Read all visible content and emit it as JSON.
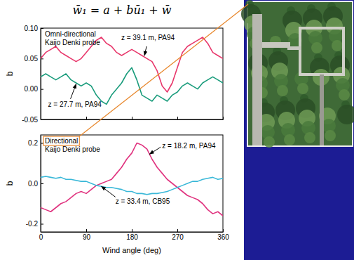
{
  "title": "w̄₁ = a + bū₁ + w̄",
  "chart_data": [
    {
      "type": "line",
      "note": [
        "Omni-directional",
        "Kaijo Denki probe"
      ],
      "y_label": "b",
      "tick_labels": "y",
      "xlim": [
        0,
        360
      ],
      "xticks": [
        0,
        90,
        180,
        270,
        360
      ],
      "ylim": [
        -0.05,
        0.1
      ],
      "yticks": [
        -0.05,
        {
          "value": 0,
          "label": "0.00"
        },
        0.05,
        {
          "value": 0.1,
          "label": "0.10"
        }
      ],
      "x": [
        0,
        10,
        20,
        30,
        40,
        50,
        60,
        70,
        80,
        90,
        100,
        110,
        120,
        130,
        140,
        150,
        160,
        170,
        180,
        190,
        200,
        210,
        220,
        230,
        240,
        250,
        260,
        270,
        280,
        290,
        300,
        310,
        320,
        330,
        340,
        350,
        360
      ],
      "series": [
        {
          "name": "z = 39.1 m, PA94",
          "color": "#e8376b",
          "values": [
            0.05,
            0.06,
            0.065,
            0.07,
            0.06,
            0.055,
            0.05,
            0.045,
            0.05,
            0.06,
            0.07,
            0.08,
            0.085,
            0.075,
            0.07,
            0.06,
            0.055,
            0.06,
            0.065,
            0.06,
            0.055,
            0.05,
            0.045,
            0.03,
            0.005,
            -0.005,
            0.01,
            0.035,
            0.06,
            0.07,
            0.075,
            0.08,
            0.085,
            0.075,
            0.06,
            0.055,
            0.05
          ]
        },
        {
          "name": "z = 27.7 m, PA94",
          "color": "#1a9c7c",
          "values": [
            0.02,
            0.025,
            0.02,
            0.015,
            0.02,
            0.025,
            0.015,
            0.01,
            0.005,
            0.01,
            0.005,
            -0.01,
            -0.02,
            -0.025,
            -0.01,
            0,
            0.01,
            0.025,
            0.035,
            0.015,
            -0.01,
            -0.015,
            -0.02,
            -0.01,
            -0.015,
            -0.02,
            -0.01,
            -0.005,
            0.005,
            0.01,
            0.005,
            0,
            0.01,
            0.015,
            0.02,
            0.015,
            0.01
          ]
        }
      ],
      "annotations": [
        {
          "text": "z = 39.1 m, PA94",
          "x": 205,
          "y": 0.055
        },
        {
          "text": "z = 27.7 m, PA94",
          "x": 70,
          "y": 0.008
        }
      ]
    },
    {
      "type": "line",
      "note": [
        "Directional",
        "Kaijo Denki probe"
      ],
      "y_label": "b",
      "x_label": "Wind angle (deg)",
      "xlim": [
        0,
        360
      ],
      "xticks": [
        0,
        90,
        180,
        270,
        360
      ],
      "ylim": [
        -0.24,
        0.24
      ],
      "yticks": [
        -0.2,
        {
          "value": 0,
          "label": "0.0"
        },
        0.2
      ],
      "x": [
        0,
        10,
        20,
        30,
        40,
        50,
        60,
        70,
        80,
        90,
        100,
        110,
        120,
        130,
        140,
        150,
        160,
        170,
        180,
        190,
        200,
        210,
        220,
        230,
        240,
        250,
        260,
        270,
        280,
        290,
        300,
        310,
        320,
        330,
        340,
        350,
        360
      ],
      "series": [
        {
          "name": "z = 18.2 m, PA94",
          "color": "#e0337f",
          "values": [
            -0.12,
            -0.13,
            -0.14,
            -0.12,
            -0.1,
            -0.09,
            -0.07,
            -0.05,
            -0.04,
            -0.05,
            -0.03,
            -0.01,
            0,
            0.01,
            0.02,
            0.05,
            0.08,
            0.12,
            0.15,
            0.2,
            0.19,
            0.17,
            0.12,
            0.08,
            0.05,
            0.02,
            0,
            -0.02,
            -0.04,
            -0.06,
            -0.07,
            -0.08,
            -0.1,
            -0.13,
            -0.15,
            -0.14,
            -0.16
          ]
        },
        {
          "name": "z = 33.4 m, CB95",
          "color": "#3ab8d8",
          "values": [
            0.03,
            0.035,
            0.03,
            0.025,
            0.03,
            0.02,
            0.02,
            0.015,
            0.01,
            0.01,
            0,
            -0.01,
            -0.015,
            -0.02,
            -0.02,
            -0.025,
            -0.03,
            -0.04,
            -0.04,
            -0.05,
            -0.05,
            -0.055,
            -0.05,
            -0.05,
            -0.045,
            -0.04,
            -0.03,
            -0.02,
            -0.01,
            0,
            0.01,
            0.01,
            0.02,
            0.025,
            0.03,
            0.02,
            0.025
          ]
        }
      ],
      "annotations": [
        {
          "text": "z = 18.2 m, PA94",
          "x": 215,
          "y": 0.145
        },
        {
          "text": "z = 33.4 m, CB95",
          "x": 120,
          "y": -0.015
        }
      ]
    }
  ]
}
